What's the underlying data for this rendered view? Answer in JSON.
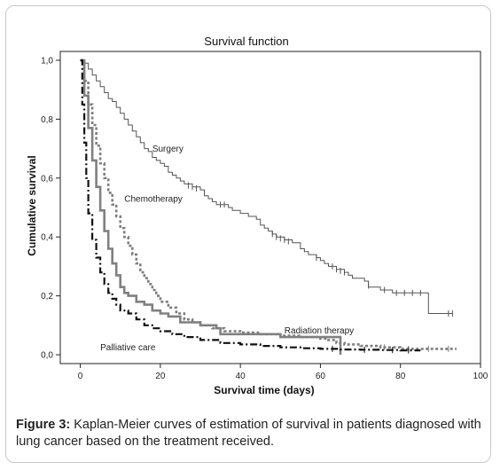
{
  "caption": {
    "label": "Figure 3:",
    "text": "Kaplan-Meier curves of estimation of survival in patients diagnosed with lung cancer based on the treatment received."
  },
  "chart_data": {
    "type": "line",
    "title": "Survival function",
    "xlabel": "Survival time (days)",
    "ylabel": "Cumulative survival",
    "xlim": [
      -5,
      100
    ],
    "ylim": [
      -0.03,
      1.03
    ],
    "xticks": [
      0,
      20,
      40,
      60,
      80,
      100
    ],
    "yticks": [
      0.0,
      0.2,
      0.4,
      0.6,
      0.8,
      1.0
    ],
    "yticklabels": [
      "0,0",
      "0,2",
      "0,4",
      "0,6",
      "0,8",
      "1,0"
    ],
    "grid": false,
    "legend": "none",
    "series": [
      {
        "name": "Surgery",
        "color": "#555555",
        "width": 1,
        "dash": "",
        "label_pos": [
          18,
          0.69
        ],
        "points": [
          [
            0,
            1.0
          ],
          [
            1,
            0.99
          ],
          [
            2,
            0.97
          ],
          [
            3,
            0.95
          ],
          [
            4,
            0.93
          ],
          [
            5,
            0.91
          ],
          [
            6,
            0.89
          ],
          [
            7,
            0.87
          ],
          [
            8,
            0.86
          ],
          [
            9,
            0.84
          ],
          [
            10,
            0.82
          ],
          [
            11,
            0.8
          ],
          [
            12,
            0.78
          ],
          [
            13,
            0.76
          ],
          [
            14,
            0.74
          ],
          [
            15,
            0.72
          ],
          [
            16,
            0.7
          ],
          [
            17,
            0.69
          ],
          [
            18,
            0.67
          ],
          [
            19,
            0.66
          ],
          [
            20,
            0.65
          ],
          [
            21,
            0.64
          ],
          [
            22,
            0.62
          ],
          [
            23,
            0.61
          ],
          [
            24,
            0.6
          ],
          [
            25,
            0.59
          ],
          [
            26,
            0.58
          ],
          [
            28,
            0.57
          ],
          [
            30,
            0.56
          ],
          [
            31,
            0.54
          ],
          [
            32,
            0.53
          ],
          [
            33,
            0.52
          ],
          [
            34,
            0.51
          ],
          [
            36,
            0.51
          ],
          [
            37,
            0.5
          ],
          [
            38,
            0.49
          ],
          [
            40,
            0.48
          ],
          [
            42,
            0.47
          ],
          [
            44,
            0.46
          ],
          [
            45,
            0.44
          ],
          [
            46,
            0.43
          ],
          [
            47,
            0.42
          ],
          [
            48,
            0.41
          ],
          [
            49,
            0.4
          ],
          [
            51,
            0.39
          ],
          [
            53,
            0.38
          ],
          [
            55,
            0.36
          ],
          [
            56,
            0.35
          ],
          [
            57,
            0.34
          ],
          [
            59,
            0.33
          ],
          [
            60,
            0.32
          ],
          [
            61,
            0.31
          ],
          [
            62,
            0.3
          ],
          [
            64,
            0.29
          ],
          [
            66,
            0.28
          ],
          [
            67,
            0.27
          ],
          [
            68,
            0.26
          ],
          [
            71,
            0.25
          ],
          [
            72,
            0.23
          ],
          [
            75,
            0.22
          ],
          [
            78,
            0.21
          ],
          [
            87,
            0.21
          ],
          [
            87,
            0.14
          ],
          [
            93,
            0.14
          ]
        ],
        "censored": [
          [
            27,
            0.575
          ],
          [
            28,
            0.57
          ],
          [
            29,
            0.565
          ],
          [
            35,
            0.51
          ],
          [
            36,
            0.51
          ],
          [
            48,
            0.41
          ],
          [
            49,
            0.4
          ],
          [
            50,
            0.395
          ],
          [
            51,
            0.39
          ],
          [
            52,
            0.385
          ],
          [
            59,
            0.33
          ],
          [
            63,
            0.3
          ],
          [
            64,
            0.29
          ],
          [
            65,
            0.285
          ],
          [
            66,
            0.28
          ],
          [
            72,
            0.235
          ],
          [
            76,
            0.22
          ],
          [
            79,
            0.21
          ],
          [
            81,
            0.21
          ],
          [
            83,
            0.21
          ],
          [
            85,
            0.21
          ],
          [
            92,
            0.14
          ],
          [
            93,
            0.14
          ]
        ]
      },
      {
        "name": "Chemotherapy",
        "color": "#7d7d7d",
        "width": 2.6,
        "dash": "3,2.5",
        "label_pos": [
          11,
          0.52
        ],
        "points": [
          [
            0,
            1.0
          ],
          [
            1,
            0.93
          ],
          [
            2,
            0.85
          ],
          [
            3,
            0.78
          ],
          [
            4,
            0.71
          ],
          [
            5,
            0.65
          ],
          [
            6,
            0.6
          ],
          [
            7,
            0.55
          ],
          [
            8,
            0.51
          ],
          [
            9,
            0.47
          ],
          [
            10,
            0.43
          ],
          [
            11,
            0.4
          ],
          [
            12,
            0.37
          ],
          [
            13,
            0.34
          ],
          [
            14,
            0.31
          ],
          [
            15,
            0.28
          ],
          [
            16,
            0.26
          ],
          [
            17,
            0.24
          ],
          [
            18,
            0.22
          ],
          [
            19,
            0.2
          ],
          [
            20,
            0.18
          ],
          [
            22,
            0.16
          ],
          [
            24,
            0.14
          ],
          [
            26,
            0.12
          ],
          [
            28,
            0.11
          ],
          [
            30,
            0.1
          ],
          [
            33,
            0.09
          ],
          [
            36,
            0.08
          ],
          [
            40,
            0.075
          ],
          [
            45,
            0.07
          ],
          [
            50,
            0.065
          ],
          [
            55,
            0.06
          ],
          [
            60,
            0.055
          ],
          [
            62,
            0.05
          ],
          [
            64,
            0.04
          ],
          [
            66,
            0.035
          ],
          [
            70,
            0.03
          ],
          [
            75,
            0.025
          ],
          [
            80,
            0.02
          ],
          [
            85,
            0.02
          ],
          [
            94,
            0.02
          ]
        ],
        "censored": [
          [
            76,
            0.025
          ],
          [
            82,
            0.02
          ],
          [
            87,
            0.02
          ],
          [
            92,
            0.02
          ]
        ]
      },
      {
        "name": "Radiation therapy",
        "color": "#808080",
        "width": 2.6,
        "dash": "",
        "label_pos": [
          51,
          0.072
        ],
        "points": [
          [
            0,
            1.0
          ],
          [
            1,
            0.88
          ],
          [
            2,
            0.77
          ],
          [
            3,
            0.66
          ],
          [
            4,
            0.57
          ],
          [
            5,
            0.49
          ],
          [
            6,
            0.42
          ],
          [
            7,
            0.36
          ],
          [
            8,
            0.31
          ],
          [
            9,
            0.27
          ],
          [
            10,
            0.23
          ],
          [
            11,
            0.21
          ],
          [
            12,
            0.2
          ],
          [
            14,
            0.18
          ],
          [
            16,
            0.17
          ],
          [
            18,
            0.15
          ],
          [
            20,
            0.14
          ],
          [
            22,
            0.13
          ],
          [
            25,
            0.11
          ],
          [
            30,
            0.1
          ],
          [
            34,
            0.09
          ],
          [
            35,
            0.07
          ],
          [
            45,
            0.07
          ],
          [
            50,
            0.06
          ],
          [
            64,
            0.06
          ],
          [
            65,
            0.06
          ],
          [
            65,
            0.0
          ]
        ],
        "censored": []
      },
      {
        "name": "Palliative care",
        "color": "#111111",
        "width": 2.2,
        "dash": "8,3,2,3",
        "label_pos": [
          5,
          0.015
        ],
        "points": [
          [
            0,
            1.0
          ],
          [
            0.5,
            0.85
          ],
          [
            1,
            0.72
          ],
          [
            1.5,
            0.6
          ],
          [
            2,
            0.48
          ],
          [
            3,
            0.39
          ],
          [
            4,
            0.33
          ],
          [
            5,
            0.28
          ],
          [
            6,
            0.24
          ],
          [
            7,
            0.21
          ],
          [
            8,
            0.19
          ],
          [
            9,
            0.17
          ],
          [
            10,
            0.15
          ],
          [
            12,
            0.14
          ],
          [
            14,
            0.12
          ],
          [
            16,
            0.1
          ],
          [
            18,
            0.09
          ],
          [
            20,
            0.08
          ],
          [
            23,
            0.07
          ],
          [
            26,
            0.06
          ],
          [
            30,
            0.05
          ],
          [
            35,
            0.04
          ],
          [
            40,
            0.035
          ],
          [
            45,
            0.03
          ],
          [
            50,
            0.025
          ],
          [
            55,
            0.022
          ],
          [
            60,
            0.02
          ],
          [
            65,
            0.018
          ],
          [
            70,
            0.017
          ],
          [
            75,
            0.016
          ],
          [
            80,
            0.015
          ],
          [
            85,
            0.015
          ]
        ],
        "censored": [
          [
            63,
            0.02
          ],
          [
            71,
            0.017
          ],
          [
            78,
            0.016
          ],
          [
            82,
            0.015
          ]
        ]
      }
    ]
  }
}
